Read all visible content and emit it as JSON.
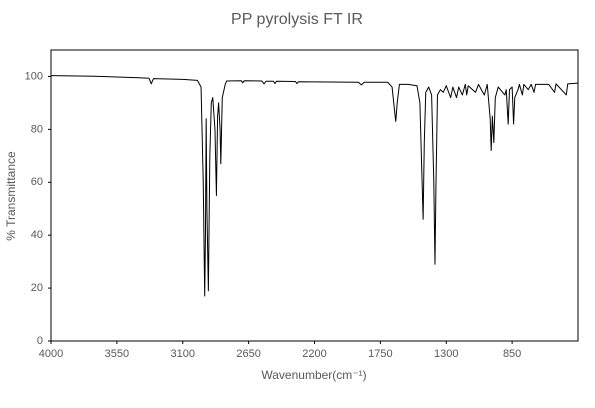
{
  "chart_data": {
    "type": "line",
    "title": "PP pyrolysis FT IR",
    "x_label": "Wavenumber(cm⁻¹)",
    "y_label": "% Transmittance",
    "color": "#000000",
    "xlim": [
      4000,
      400
    ],
    "xticks": [
      4000,
      3550,
      3100,
      2650,
      2200,
      1750,
      1300,
      850
    ],
    "ylim": [
      0,
      110
    ],
    "yticks": [
      0,
      20,
      40,
      60,
      80,
      100
    ],
    "x": [
      4000,
      3700,
      3400,
      3330,
      3315,
      3300,
      3100,
      3000,
      2975,
      2960,
      2950,
      2945,
      2940,
      2935,
      2925,
      2915,
      2905,
      2895,
      2880,
      2870,
      2862,
      2855,
      2845,
      2840,
      2830,
      2810,
      2800,
      2700,
      2690,
      2680,
      2560,
      2545,
      2530,
      2480,
      2470,
      2460,
      2330,
      2320,
      2310,
      1900,
      1880,
      1860,
      1700,
      1670,
      1655,
      1645,
      1635,
      1620,
      1560,
      1500,
      1480,
      1465,
      1458,
      1450,
      1440,
      1420,
      1400,
      1385,
      1377,
      1370,
      1360,
      1340,
      1320,
      1300,
      1270,
      1255,
      1230,
      1215,
      1190,
      1170,
      1160,
      1150,
      1100,
      1080,
      1040,
      1020,
      1000,
      993,
      985,
      975,
      965,
      945,
      900,
      890,
      877,
      868,
      850,
      840,
      832,
      810,
      800,
      780,
      770,
      740,
      720,
      700,
      690,
      600,
      560,
      550,
      480,
      470,
      400
    ],
    "values": [
      100.3,
      100.1,
      99.5,
      99.3,
      97.2,
      99.2,
      98.9,
      98.5,
      96,
      60,
      17,
      40,
      84,
      50,
      19,
      70,
      90,
      92,
      80,
      55,
      85,
      90,
      80,
      67,
      92,
      97,
      98.3,
      98.4,
      97.6,
      98.4,
      98.3,
      97.2,
      98.2,
      98.2,
      97.3,
      98.2,
      98.1,
      97.3,
      98,
      97.8,
      96.8,
      97.8,
      97.8,
      96,
      88,
      83,
      90,
      97,
      97,
      96.5,
      90,
      60,
      46,
      75,
      94,
      96,
      93,
      60,
      29,
      60,
      93,
      95,
      94,
      96.5,
      92,
      96,
      92,
      96,
      93,
      97,
      93,
      96.5,
      94,
      97,
      93,
      97,
      84,
      72,
      85,
      75,
      92,
      96,
      93,
      95,
      82,
      95,
      96,
      82,
      92,
      95,
      97,
      93,
      97,
      95,
      97,
      94,
      97,
      97,
      94,
      97.2,
      93,
      97.2,
      97.5
    ]
  }
}
